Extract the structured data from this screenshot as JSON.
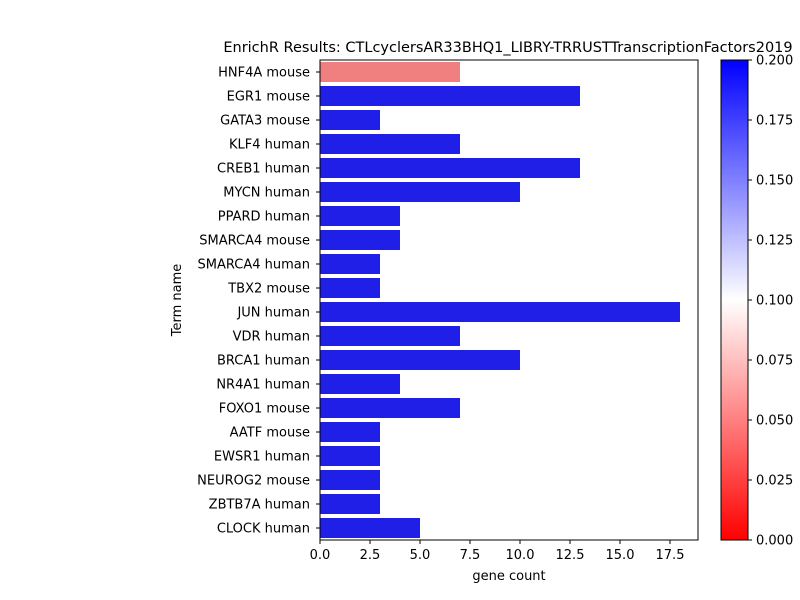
{
  "chart_data": {
    "type": "bar",
    "orientation": "horizontal",
    "title": "EnrichR Results: CTLcyclersAR33BHQ1_LIBRY-TRRUSTTranscriptionFactors2019",
    "xlabel": "gene count",
    "ylabel": "Term name",
    "xlim": [
      0,
      19
    ],
    "xticks": [
      "0.0",
      "2.5",
      "5.0",
      "7.5",
      "10.0",
      "12.5",
      "15.0",
      "17.5"
    ],
    "categories": [
      "HNF4A mouse",
      "EGR1 mouse",
      "GATA3 mouse",
      "KLF4 human",
      "CREB1 human",
      "MYCN human",
      "PPARD human",
      "SMARCA4 mouse",
      "SMARCA4 human",
      "TBX2 mouse",
      "JUN human",
      "VDR human",
      "BRCA1 human",
      "NR4A1 human",
      "FOXO1 mouse",
      "AATF mouse",
      "EWSR1 human",
      "NEUROG2 mouse",
      "ZBTB7A human",
      "CLOCK human"
    ],
    "values": [
      7,
      13,
      3,
      7,
      13,
      10,
      4,
      4,
      3,
      3,
      18,
      7,
      10,
      4,
      7,
      3,
      3,
      3,
      3,
      5
    ],
    "bar_colors": [
      "#f08080",
      "#1f1fe8",
      "#1f1fe8",
      "#1f1fe8",
      "#1f1fe8",
      "#1f1fe8",
      "#1f1fe8",
      "#1f1fe8",
      "#1f1fe8",
      "#1f1fe8",
      "#1f1fe8",
      "#1f1fe8",
      "#1f1fe8",
      "#1f1fe8",
      "#1f1fe8",
      "#1f1fe8",
      "#1f1fe8",
      "#1f1fe8",
      "#1f1fe8",
      "#1f1fe8"
    ],
    "colorbar": {
      "range": [
        0,
        0.2
      ],
      "ticks": [
        "0.000",
        "0.025",
        "0.050",
        "0.075",
        "0.100",
        "0.125",
        "0.150",
        "0.175",
        "0.200"
      ],
      "colors": [
        "#ff0000",
        "#ffffff",
        "#0000ff"
      ]
    },
    "grid": false,
    "legend": "none"
  }
}
